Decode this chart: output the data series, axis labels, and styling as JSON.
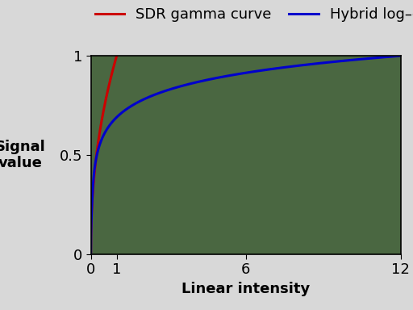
{
  "title": "",
  "xlabel": "Linear intensity",
  "ylabel": "Signal\nvalue",
  "xlim": [
    0,
    12
  ],
  "ylim": [
    0,
    1
  ],
  "xticks": [
    0,
    1,
    6,
    12
  ],
  "xtick_labels": [
    "0",
    "1",
    "6",
    "12"
  ],
  "yticks": [
    0,
    0.5,
    1
  ],
  "ytick_labels": [
    "0",
    "0.5",
    "1"
  ],
  "plot_bg_color": "#4a6741",
  "fig_bg_color": "#d8d8d8",
  "sdr_color": "#cc0000",
  "hlg_color": "#0000cc",
  "sdr_label": "SDR gamma curve",
  "hlg_label": "Hybrid log–gamma",
  "legend_fontsize": 13,
  "axis_label_fontsize": 13,
  "tick_fontsize": 13,
  "linewidth": 2.2,
  "figsize": [
    5.12,
    3.84
  ],
  "dpi": 100
}
